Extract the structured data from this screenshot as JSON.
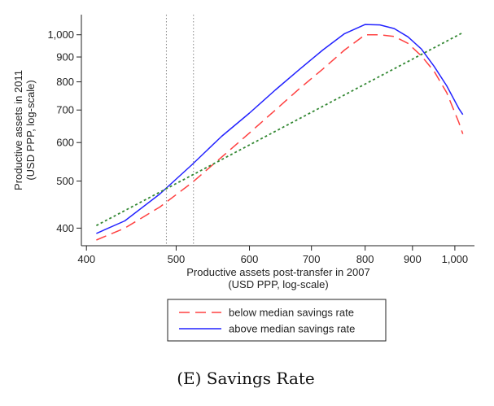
{
  "chart_data": {
    "type": "line",
    "xlabel": [
      "Productive assets post-transfer in 2007",
      "(USD PPP, log-scale)"
    ],
    "ylabel": [
      "Productive assets in 2011",
      "(USD PPP, log-scale)"
    ],
    "x_scale": "log",
    "y_scale": "log",
    "xlim": [
      395,
      1050
    ],
    "ylim": [
      368,
      1100
    ],
    "x_ticks": [
      400,
      500,
      600,
      700,
      800,
      900,
      1000
    ],
    "x_tick_labels": [
      "400",
      "500",
      "600",
      "700",
      "800",
      "900",
      "1,000"
    ],
    "y_ticks": [
      400,
      500,
      600,
      700,
      800,
      900,
      1000
    ],
    "y_tick_labels": [
      "400",
      "500",
      "600",
      "700",
      "800",
      "900",
      "1,000"
    ],
    "vertical_reference_lines": [
      488,
      522
    ],
    "grid": false,
    "legend_position": "bottom",
    "series": [
      {
        "name": "below median savings rate",
        "color": "#ff4040",
        "dash": "dashed",
        "x": [
          410,
          440,
          480,
          520,
          560,
          600,
          640,
          680,
          720,
          760,
          800,
          830,
          860,
          890,
          920,
          950,
          980,
          1010,
          1020
        ],
        "y": [
          378,
          400,
          442,
          496,
          560,
          628,
          700,
          776,
          850,
          930,
          1000,
          1000,
          992,
          960,
          905,
          840,
          760,
          660,
          625
        ]
      },
      {
        "name": "above median savings rate",
        "color": "#2222ff",
        "dash": "solid",
        "x": [
          410,
          440,
          480,
          520,
          560,
          600,
          640,
          680,
          720,
          760,
          800,
          830,
          860,
          890,
          920,
          950,
          980,
          1010,
          1020
        ],
        "y": [
          390,
          414,
          470,
          540,
          618,
          690,
          770,
          850,
          930,
          1005,
          1050,
          1048,
          1030,
          990,
          935,
          860,
          785,
          705,
          685
        ]
      },
      {
        "name": "",
        "color": "#338833",
        "dash": "dotted",
        "x": [
          410,
          1020
        ],
        "y": [
          405,
          1010
        ]
      }
    ]
  },
  "caption": "(E) Savings Rate"
}
